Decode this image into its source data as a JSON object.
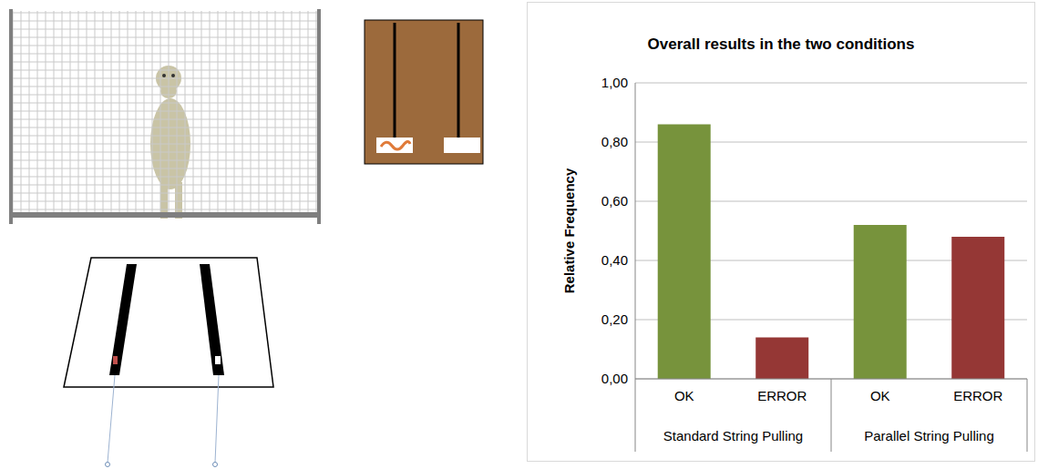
{
  "chart_data": {
    "type": "bar",
    "title": "Overall results in the two conditions",
    "y_label": "Relative Frequency",
    "categories": [
      "OK",
      "ERROR",
      "OK",
      "ERROR"
    ],
    "groups": [
      "Standard String Pulling",
      "Parallel String Pulling"
    ],
    "values": [
      0.86,
      0.14,
      0.52,
      0.48
    ],
    "colors": [
      "#77933c",
      "#953735",
      "#77933c",
      "#953735"
    ],
    "ylim": [
      0,
      1
    ],
    "yticks": [
      {
        "value": 0,
        "label": "0,00"
      },
      {
        "value": 0.2,
        "label": "0,20"
      },
      {
        "value": 0.4,
        "label": "0,40"
      },
      {
        "value": 0.6,
        "label": "0,60"
      },
      {
        "value": 0.8,
        "label": "0,80"
      },
      {
        "value": 1,
        "label": "1,00"
      }
    ],
    "grid": true
  }
}
